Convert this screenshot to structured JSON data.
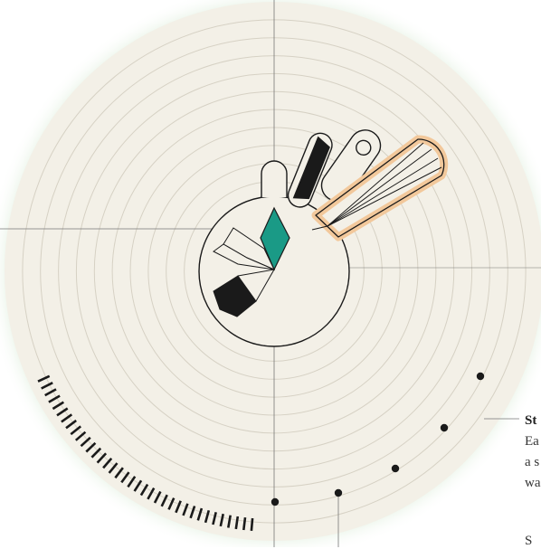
{
  "annotation": {
    "title": "St",
    "lines": [
      "Ea",
      "a s",
      "wa"
    ],
    "extra": "S"
  },
  "colors": {
    "background": "#f3f0e7",
    "glow": "#b9dbb3",
    "ring_line": "#d6d1c4",
    "axis_line": "#777777",
    "ink": "#1a1a1a",
    "teal": "#1a9a86",
    "peach": "#f2c89b",
    "annotation_text": "#333333"
  },
  "icons": {
    "glyph": "radial-petal-figure",
    "leader": "leader-line"
  },
  "diagram": {
    "ring_count": 14,
    "tick_arc": {
      "start_deg": 95,
      "end_deg": 155,
      "count": 36
    },
    "dots": 5
  }
}
